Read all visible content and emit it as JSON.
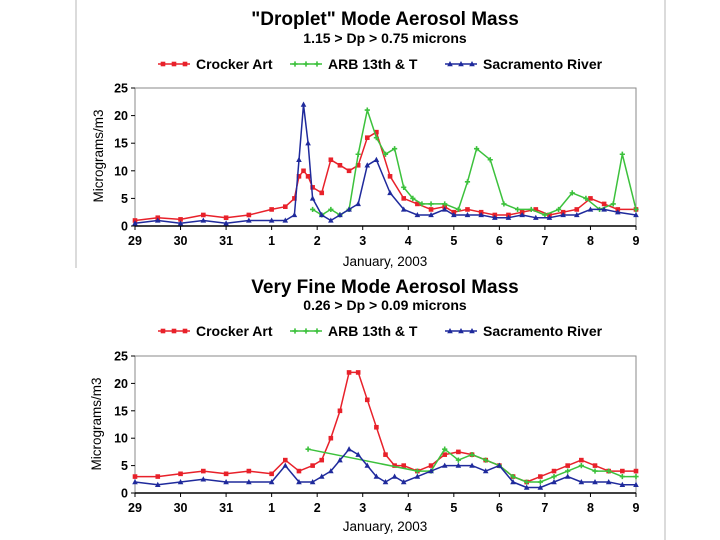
{
  "chart_data": [
    {
      "type": "line",
      "title": "\"Droplet\" Mode Aerosol Mass",
      "subtitle": "1.15 > Dp > 0.75 microns",
      "xlabel": "January, 2003",
      "ylabel": "Micrograms/m3",
      "ylim": [
        0,
        25
      ],
      "yticks": [
        0,
        5,
        10,
        15,
        20,
        25
      ],
      "xlim": [
        0,
        11
      ],
      "xtick_labels": [
        "29",
        "30",
        "31",
        "1",
        "2",
        "3",
        "4",
        "5",
        "6",
        "7",
        "8",
        "9"
      ],
      "grid": false,
      "legend_position": "top",
      "series": [
        {
          "name": "Crocker Art",
          "color": "#e8212a",
          "marker": "square",
          "x": [
            0,
            0.5,
            1,
            1.5,
            2,
            2.5,
            3,
            3.3,
            3.5,
            3.6,
            3.7,
            3.8,
            3.9,
            4.1,
            4.3,
            4.5,
            4.7,
            4.9,
            5.1,
            5.3,
            5.6,
            5.9,
            6.2,
            6.5,
            6.8,
            7,
            7.3,
            7.6,
            7.9,
            8.2,
            8.5,
            8.8,
            9.1,
            9.4,
            9.7,
            10,
            10.3,
            10.6,
            11
          ],
          "values": [
            1,
            1.5,
            1.2,
            2,
            1.5,
            2,
            3,
            3.5,
            5,
            9,
            10,
            9,
            7,
            6,
            12,
            11,
            10,
            11,
            16,
            17,
            9,
            5,
            4,
            3,
            3.5,
            2.5,
            3,
            2.5,
            2,
            2,
            2.5,
            3,
            2,
            2.5,
            3,
            5,
            4,
            3,
            3
          ]
        },
        {
          "name": "ARB 13th & T",
          "color": "#3cc13c",
          "marker": "cross",
          "x": [
            3.9,
            4.1,
            4.3,
            4.5,
            4.7,
            4.9,
            5.1,
            5.3,
            5.5,
            5.7,
            5.9,
            6.1,
            6.3,
            6.5,
            6.8,
            7.1,
            7.3,
            7.5,
            7.8,
            8.1,
            8.4,
            8.7,
            9,
            9.3,
            9.6,
            9.9,
            10.2,
            10.5,
            10.7,
            11
          ],
          "values": [
            3,
            2,
            3,
            2,
            3,
            13,
            21,
            16,
            13,
            14,
            7,
            5,
            4,
            4,
            4,
            3,
            8,
            14,
            12,
            4,
            3,
            3,
            2,
            3,
            6,
            5,
            3,
            4,
            13,
            3
          ]
        },
        {
          "name": "Sacramento River",
          "color": "#1f2a9c",
          "marker": "triangle",
          "x": [
            0,
            0.5,
            1,
            1.5,
            2,
            2.5,
            3,
            3.3,
            3.5,
            3.6,
            3.7,
            3.8,
            3.9,
            4.1,
            4.3,
            4.5,
            4.7,
            4.9,
            5.1,
            5.3,
            5.6,
            5.9,
            6.2,
            6.5,
            6.8,
            7,
            7.3,
            7.6,
            7.9,
            8.2,
            8.5,
            8.8,
            9.1,
            9.4,
            9.7,
            10,
            10.3,
            10.6,
            11
          ],
          "values": [
            0.5,
            1,
            0.5,
            1,
            0.5,
            1,
            1,
            1,
            2,
            12,
            22,
            15,
            5,
            2,
            1,
            2,
            3,
            4,
            11,
            12,
            6,
            3,
            2,
            2,
            3,
            2,
            2,
            2,
            1.5,
            1.5,
            2,
            1.5,
            1.5,
            2,
            2,
            3,
            3,
            2.5,
            2
          ]
        }
      ]
    },
    {
      "type": "line",
      "title": "Very Fine  Mode Aerosol Mass",
      "subtitle": "0.26 > Dp > 0.09 microns",
      "xlabel": "January, 2003",
      "ylabel": "Micrograms/m3",
      "ylim": [
        0,
        25
      ],
      "yticks": [
        0,
        5,
        10,
        15,
        20,
        25
      ],
      "xlim": [
        0,
        11
      ],
      "xtick_labels": [
        "29",
        "30",
        "31",
        "1",
        "2",
        "3",
        "4",
        "5",
        "6",
        "7",
        "8",
        "9"
      ],
      "grid": false,
      "legend_position": "top",
      "series": [
        {
          "name": "Crocker Art",
          "color": "#e8212a",
          "marker": "square",
          "x": [
            0,
            0.5,
            1,
            1.5,
            2,
            2.5,
            3,
            3.3,
            3.6,
            3.9,
            4.1,
            4.3,
            4.5,
            4.7,
            4.9,
            5.1,
            5.3,
            5.5,
            5.7,
            5.9,
            6.2,
            6.5,
            6.8,
            7.1,
            7.4,
            7.7,
            8,
            8.3,
            8.6,
            8.9,
            9.2,
            9.5,
            9.8,
            10.1,
            10.4,
            10.7,
            11
          ],
          "values": [
            3,
            3,
            3.5,
            4,
            3.5,
            4,
            3.5,
            6,
            4,
            5,
            6,
            10,
            15,
            22,
            22,
            17,
            12,
            7,
            5,
            5,
            4,
            5,
            7,
            7.5,
            7,
            6,
            5,
            3,
            2,
            3,
            4,
            5,
            6,
            5,
            4,
            4,
            4
          ]
        },
        {
          "name": "ARB 13th & T",
          "color": "#3cc13c",
          "marker": "cross",
          "x": [
            3.8,
            6.2,
            6.5,
            6.8,
            7.1,
            7.4,
            7.7,
            8,
            8.3,
            8.6,
            8.9,
            9.2,
            9.5,
            9.8,
            10.1,
            10.4,
            10.7,
            11
          ],
          "values": [
            8,
            4,
            4,
            8,
            6,
            7,
            6,
            5,
            3,
            2,
            2,
            3,
            4,
            5,
            4,
            4,
            3,
            3
          ]
        },
        {
          "name": "Sacramento River",
          "color": "#1f2a9c",
          "marker": "triangle",
          "x": [
            0,
            0.5,
            1,
            1.5,
            2,
            2.5,
            3,
            3.3,
            3.6,
            3.9,
            4.1,
            4.3,
            4.5,
            4.7,
            4.9,
            5.1,
            5.3,
            5.5,
            5.7,
            5.9,
            6.2,
            6.5,
            6.8,
            7.1,
            7.4,
            7.7,
            8,
            8.3,
            8.6,
            8.9,
            9.2,
            9.5,
            9.8,
            10.1,
            10.4,
            10.7,
            11
          ],
          "values": [
            2,
            1.5,
            2,
            2.5,
            2,
            2,
            2,
            5,
            2,
            2,
            3,
            4,
            6,
            8,
            7,
            5,
            3,
            2,
            3,
            2,
            3,
            4,
            5,
            5,
            5,
            4,
            5,
            2,
            1,
            1,
            2,
            3,
            2,
            2,
            2,
            1.5,
            1.5
          ]
        }
      ]
    }
  ]
}
